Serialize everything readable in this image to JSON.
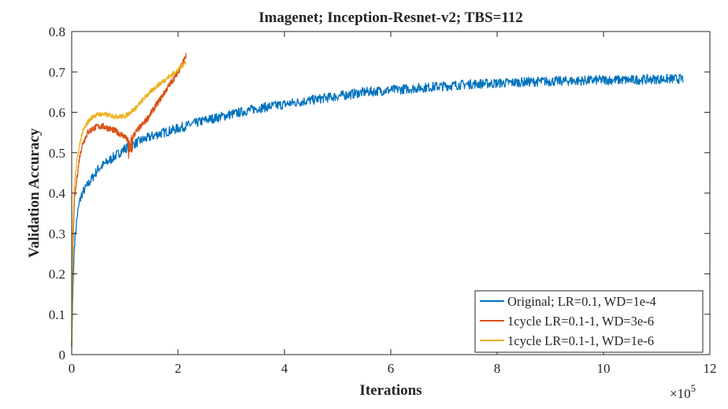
{
  "chart_data": {
    "type": "line",
    "title": "Imagenet; Inception-Resnet-v2; TBS=112",
    "xlabel": "Iterations",
    "ylabel": "Validation Accuracy",
    "x_multiplier_label": "×10",
    "x_multiplier_exp": "5",
    "xlim": [
      0,
      12
    ],
    "ylim": [
      0,
      0.8
    ],
    "x_ticks": [
      "0",
      "2",
      "4",
      "6",
      "8",
      "10",
      "12"
    ],
    "y_ticks": [
      "0",
      "0.1",
      "0.2",
      "0.3",
      "0.4",
      "0.5",
      "0.6",
      "0.7",
      "0.8"
    ],
    "grid": false,
    "legend_position": "bottom-right",
    "series": [
      {
        "name": "Original; LR=0.1, WD=1e-4",
        "color": "#0072BD",
        "x": [
          0,
          0.02,
          0.05,
          0.1,
          0.15,
          0.2,
          0.3,
          0.4,
          0.5,
          0.7,
          1.0,
          1.3,
          1.6,
          2.0,
          2.5,
          3.0,
          3.5,
          4.0,
          4.5,
          5.0,
          5.5,
          6.0,
          6.5,
          7.0,
          7.5,
          8.0,
          8.5,
          9.0,
          9.5,
          10.0,
          10.5,
          11.0,
          11.5
        ],
        "y": [
          0.02,
          0.15,
          0.27,
          0.34,
          0.38,
          0.4,
          0.42,
          0.44,
          0.46,
          0.48,
          0.51,
          0.53,
          0.545,
          0.56,
          0.58,
          0.595,
          0.61,
          0.62,
          0.63,
          0.64,
          0.65,
          0.655,
          0.66,
          0.665,
          0.67,
          0.672,
          0.675,
          0.677,
          0.678,
          0.68,
          0.68,
          0.682,
          0.683
        ]
      },
      {
        "name": "1cycle LR=0.1-1, WD=3e-6",
        "color": "#D95319",
        "x": [
          0,
          0.02,
          0.05,
          0.1,
          0.15,
          0.2,
          0.3,
          0.4,
          0.5,
          0.6,
          0.8,
          1.0,
          1.05,
          1.1,
          1.2,
          1.4,
          1.6,
          1.8,
          2.0,
          2.15
        ],
        "y": [
          0.02,
          0.25,
          0.38,
          0.44,
          0.49,
          0.52,
          0.55,
          0.56,
          0.565,
          0.565,
          0.555,
          0.54,
          0.53,
          0.53,
          0.55,
          0.58,
          0.62,
          0.66,
          0.7,
          0.74
        ]
      },
      {
        "name": "1cycle LR=0.1-1, WD=1e-6",
        "color": "#EDB120",
        "x": [
          0,
          0.02,
          0.05,
          0.1,
          0.15,
          0.2,
          0.3,
          0.4,
          0.5,
          0.6,
          0.8,
          1.0,
          1.2,
          1.4,
          1.6,
          1.8,
          2.0,
          2.15
        ],
        "y": [
          0.02,
          0.3,
          0.42,
          0.48,
          0.52,
          0.55,
          0.575,
          0.59,
          0.595,
          0.595,
          0.59,
          0.59,
          0.61,
          0.64,
          0.665,
          0.685,
          0.705,
          0.725
        ]
      }
    ]
  }
}
